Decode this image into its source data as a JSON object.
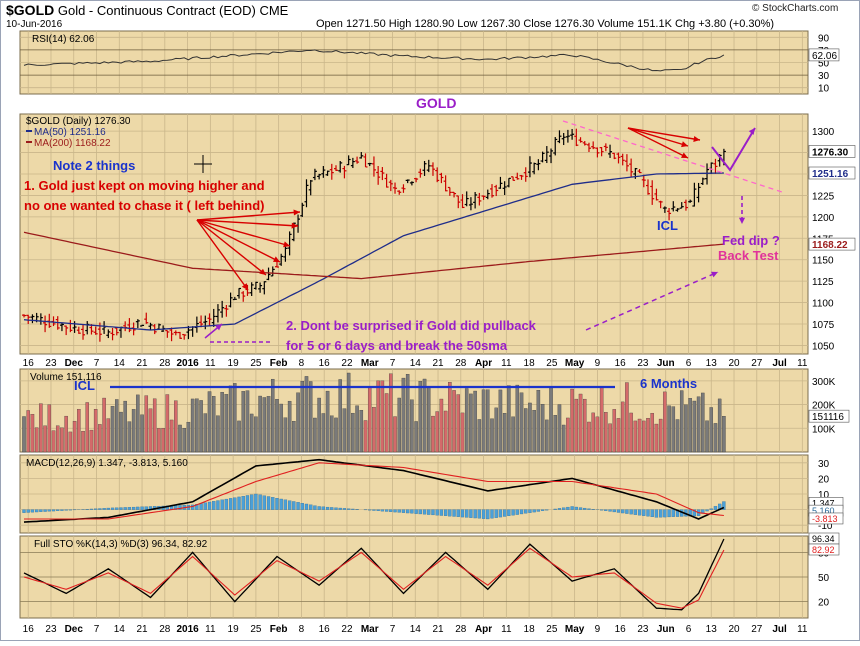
{
  "header": {
    "symbol": "$GOLD",
    "description": "Gold - Continuous Contract (EOD)",
    "exchange": "CME",
    "date": "10-Jun-2016",
    "ohlc": "Open 1271.50  High 1280.90  Low 1267.30  Close 1276.30  Volume 151.1K  Chg +3.80 (+0.30%)",
    "brand": "© StockCharts.com"
  },
  "colors": {
    "panel_bg": "#edd9a8",
    "price_up": "#000000",
    "price_down": "#cc0000",
    "ma50": "#1f2d8a",
    "ma200": "#9b1b1b",
    "annotation_red": "#d80000",
    "annotation_purple": "#9a1ec8",
    "annotation_blue": "#1a33cc",
    "trendline_pink": "#ff66cc",
    "rsi_line": "#333333",
    "macd_line": "#000000",
    "macd_signal": "#e02020",
    "macd_hist": "#4aa0d8",
    "sto_k": "#000000",
    "sto_d": "#e02020",
    "volume_up": "#7a7a7a",
    "volume_down": "#d46a6a"
  },
  "chart_data": {
    "type": "candlestick",
    "title": "$GOLD (Daily) 1276.30",
    "date_axis_labels": [
      "16",
      "23",
      "Dec",
      "7",
      "14",
      "21",
      "28",
      "2016",
      "11",
      "19",
      "25",
      "Feb",
      "8",
      "16",
      "22",
      "Mar",
      "7",
      "14",
      "21",
      "28",
      "Apr",
      "11",
      "18",
      "25",
      "May",
      "9",
      "16",
      "23",
      "Jun",
      "6",
      "13",
      "20",
      "27",
      "Jul",
      "11"
    ],
    "price": {
      "ylim": [
        1040,
        1320
      ],
      "ticks": [
        "1300",
        "1275",
        "1250",
        "1225",
        "1200",
        "1175",
        "1150",
        "1125",
        "1100",
        "1075",
        "1050"
      ],
      "last": "1276.30",
      "ohlc_anchor_days": [
        0,
        12,
        20,
        28,
        36,
        44,
        50,
        56,
        62,
        68,
        74,
        80,
        88,
        96,
        104,
        114,
        122,
        128,
        134,
        140,
        146,
        152,
        158,
        162,
        164,
        166
      ],
      "ohlc_anchor_close": [
        1085,
        1070,
        1065,
        1078,
        1062,
        1080,
        1108,
        1120,
        1160,
        1245,
        1255,
        1270,
        1232,
        1260,
        1212,
        1240,
        1262,
        1295,
        1285,
        1272,
        1245,
        1208,
        1216,
        1255,
        1262,
        1276.3
      ],
      "series": [
        {
          "name": "MA(50) 1251.16",
          "last": "1251.16",
          "anchor_days": [
            0,
            30,
            50,
            70,
            90,
            110,
            130,
            150,
            166
          ],
          "anchor_values": [
            1080,
            1068,
            1075,
            1125,
            1178,
            1208,
            1238,
            1250,
            1251.16
          ]
        },
        {
          "name": "MA(200) 1168.22",
          "last": "1168.22",
          "anchor_days": [
            0,
            40,
            80,
            120,
            166
          ],
          "anchor_values": [
            1182,
            1140,
            1128,
            1148,
            1168.22
          ]
        }
      ]
    },
    "rsi": {
      "label": "RSI(14) 62.06",
      "last": "62.06",
      "ylim": [
        0,
        100
      ],
      "ticks": [
        "90",
        "70",
        "50",
        "30",
        "10"
      ],
      "anchor_days": [
        0,
        30,
        60,
        68,
        90,
        110,
        130,
        150,
        156,
        160,
        166
      ],
      "anchor_values": [
        46,
        52,
        66,
        70,
        60,
        55,
        62,
        36,
        38,
        50,
        62.06
      ]
    },
    "volume": {
      "label": "Volume 151,116",
      "last": "151116",
      "ylim": [
        0,
        350
      ],
      "ticks": [
        "300K",
        "200K",
        "100K"
      ],
      "unit": "K",
      "anchor_days": [
        0,
        40,
        60,
        80,
        100,
        120,
        140,
        160,
        166
      ],
      "anchor_values": [
        140,
        180,
        230,
        240,
        220,
        200,
        210,
        180,
        151.1
      ]
    },
    "macd": {
      "label": "MACD(12,26,9) 1.347, -3.813, 5.160",
      "ylim": [
        -15,
        35
      ],
      "ticks": [
        "30",
        "20",
        "10",
        "0",
        "-10"
      ],
      "macd_last": "1.347",
      "signal_last": "-3.813",
      "hist_last": "5.160",
      "anchor_days": [
        0,
        20,
        40,
        55,
        70,
        90,
        110,
        130,
        150,
        160,
        166
      ],
      "macd_values": [
        -8,
        -5,
        5,
        28,
        32,
        25,
        12,
        20,
        5,
        -6,
        1.347
      ],
      "signal_values": [
        -6,
        -6,
        2,
        18,
        30,
        27,
        18,
        18,
        10,
        -2,
        -3.813
      ]
    },
    "sto": {
      "label": "Full STO %K(14,3) %D(3) 96.34, 82.92",
      "ylim": [
        0,
        100
      ],
      "ticks": [
        "80",
        "50",
        "20"
      ],
      "k_last": "96.34",
      "d_last": "82.92",
      "anchor_days": [
        0,
        10,
        20,
        30,
        40,
        50,
        60,
        70,
        80,
        90,
        100,
        110,
        120,
        130,
        140,
        150,
        156,
        160,
        166
      ],
      "k_values": [
        55,
        30,
        60,
        25,
        80,
        20,
        75,
        40,
        85,
        30,
        80,
        35,
        90,
        45,
        60,
        12,
        10,
        30,
        96.34
      ],
      "d_values": [
        50,
        35,
        55,
        30,
        75,
        28,
        70,
        45,
        80,
        35,
        75,
        40,
        85,
        50,
        55,
        18,
        12,
        22,
        82.92
      ]
    }
  },
  "annotations": {
    "gold": "GOLD",
    "note": "Note 2 things",
    "line1a": "1. Gold just kept on moving higher and",
    "line1b": "no one wanted to chase it ( left behind)",
    "line2a": "2. Dont be surprised if Gold did pullback",
    "line2b": "for 5 or 6 days and break the 50sma",
    "icl_price": "ICL",
    "icl_volume": "ICL",
    "six_months": "6 Months",
    "fed_dip": "Fed dip ?",
    "back_test": "Back Test"
  }
}
